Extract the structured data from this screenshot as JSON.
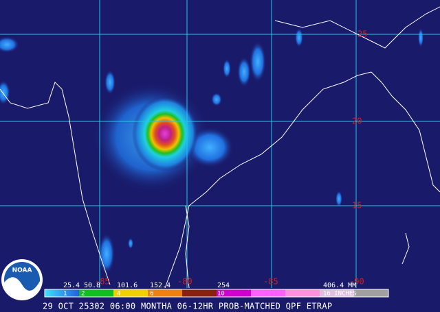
{
  "map": {
    "lat_labels": [
      "25",
      "20",
      "15"
    ],
    "lon_labels": [
      "-85",
      "-80",
      "-85",
      "-90"
    ],
    "legend": {
      "mm_labels": [
        "25.4",
        "50.8",
        "101.6",
        "152.4",
        "254",
        "406.4 MM"
      ],
      "inch_labels": [
        "1",
        "2",
        "4",
        "6",
        "10",
        "16 INCHES"
      ]
    },
    "caption": "29 OCT 25302 06:00 MONTHA 06-12HR PROB-MATCHED QPF ETRAP",
    "logo": "NOAA"
  }
}
